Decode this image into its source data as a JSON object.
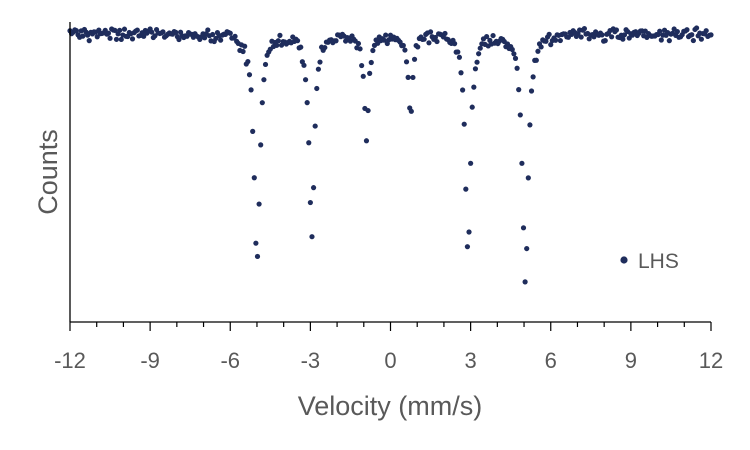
{
  "chart_data": {
    "type": "scatter",
    "title": "",
    "xlabel": "Velocity (mm/s)",
    "ylabel": "Counts",
    "xlim": [
      -12,
      12
    ],
    "ylim": [
      0,
      1.04
    ],
    "xticks": [
      -12,
      -9,
      -6,
      -3,
      0,
      3,
      6,
      9,
      12
    ],
    "xtick_labels": [
      "-12",
      "-9",
      "-6",
      "-3",
      "0",
      "3",
      "6",
      "9",
      "12"
    ],
    "y_tick_labels_shown": false,
    "grid": false,
    "legend_position": "lower-right",
    "point_color": "#1f2d5c",
    "series": [
      {
        "name": "LHS",
        "baseline": 1.0,
        "step": 0.06,
        "x_range": [
          -12,
          12
        ],
        "absorption_lines": [
          {
            "position": -5.0,
            "depth": 0.8,
            "halfwidth": 0.13
          },
          {
            "position": -2.95,
            "depth": 0.7,
            "halfwidth": 0.12
          },
          {
            "position": -0.9,
            "depth": 0.35,
            "halfwidth": 0.11
          },
          {
            "position": 0.75,
            "depth": 0.27,
            "halfwidth": 0.1
          },
          {
            "position": 2.9,
            "depth": 0.76,
            "halfwidth": 0.12
          },
          {
            "position": 5.05,
            "depth": 0.86,
            "halfwidth": 0.13
          }
        ],
        "noise_amplitude": 0.015
      }
    ]
  }
}
